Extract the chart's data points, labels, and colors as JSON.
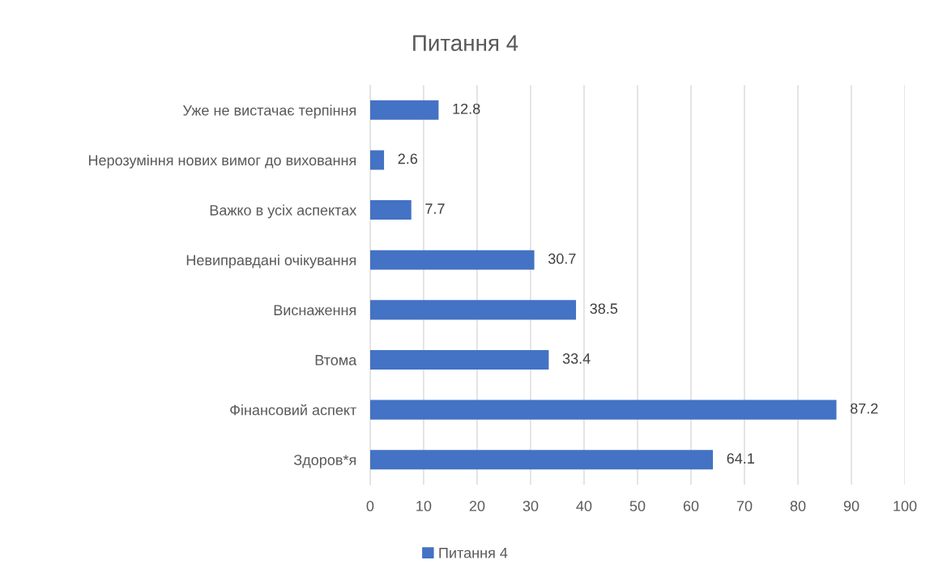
{
  "chart_data": {
    "type": "bar",
    "orientation": "horizontal",
    "title": "Питання 4",
    "categories": [
      "Уже не вистачає терпіння",
      "Нерозуміння нових вимог до виховання",
      "Важко в усіх аспектах",
      "Невиправдані очікування",
      "Виснаження",
      "Втома",
      "Фінансовий аспект",
      "Здоров*я"
    ],
    "series": [
      {
        "name": "Питання 4",
        "color": "#4472c4",
        "values": [
          12.8,
          2.6,
          7.7,
          30.7,
          38.5,
          33.4,
          87.2,
          64.1
        ]
      }
    ],
    "xlim": [
      0,
      100
    ],
    "xticks": [
      0,
      10,
      20,
      30,
      40,
      50,
      60,
      70,
      80,
      90,
      100
    ],
    "grid": "x",
    "legend": "bottom",
    "data_labels": true
  }
}
